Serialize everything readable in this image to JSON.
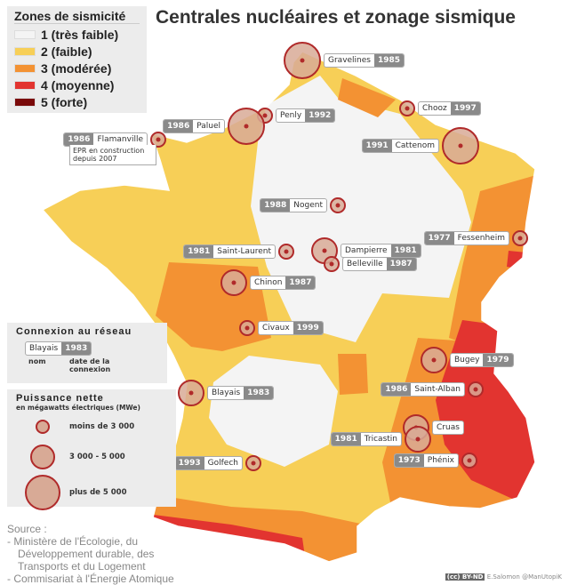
{
  "title": "Centrales nucléaires et zonage sismique",
  "legend": {
    "title": "Zones de sismicité",
    "zones": [
      {
        "label": "1 (très faible)",
        "color": "#f4f4f4"
      },
      {
        "label": "2 (faible)",
        "color": "#f7cf57"
      },
      {
        "label": "3 (modérée)",
        "color": "#f39233"
      },
      {
        "label": "4 (moyenne)",
        "color": "#e23430"
      },
      {
        "label": "5 (forte)",
        "color": "#7a0a0a"
      }
    ]
  },
  "connexion": {
    "title": "Connexion au réseau",
    "example_name": "Blayais",
    "example_year": "1983",
    "name_caption": "nom",
    "date_caption": "date de la connexion"
  },
  "puissance": {
    "title": "Puissance nette",
    "subtitle": "en mégawatts électriques (MWe)",
    "sizes": [
      "moins de 3 000",
      "3 000 - 5 000",
      "plus de 5 000"
    ]
  },
  "plants": [
    {
      "name": "Gravelines",
      "year": "1985",
      "size": "large"
    },
    {
      "name": "Penly",
      "year": "1992",
      "size": "small"
    },
    {
      "name": "Paluel",
      "year": "1986",
      "size": "large"
    },
    {
      "name": "Flamanville",
      "year": "1986",
      "size": "small",
      "note": "EPR en construction depuis 2007"
    },
    {
      "name": "Chooz",
      "year": "1997",
      "size": "small"
    },
    {
      "name": "Cattenom",
      "year": "1991",
      "size": "large"
    },
    {
      "name": "Nogent",
      "year": "1988",
      "size": "small"
    },
    {
      "name": "Saint-Laurent",
      "year": "1981",
      "size": "small"
    },
    {
      "name": "Dampierre",
      "year": "1981",
      "size": "medium"
    },
    {
      "name": "Belleville",
      "year": "1987",
      "size": "small"
    },
    {
      "name": "Fessenheim",
      "year": "1977",
      "size": "small"
    },
    {
      "name": "Chinon",
      "year": "1987",
      "size": "medium"
    },
    {
      "name": "Civaux",
      "year": "1999",
      "size": "small"
    },
    {
      "name": "Bugey",
      "year": "1979",
      "size": "medium"
    },
    {
      "name": "Saint-Alban",
      "year": "1986",
      "size": "small"
    },
    {
      "name": "Blayais",
      "year": "1983",
      "size": "medium"
    },
    {
      "name": "Cruas",
      "year": "",
      "size": "medium"
    },
    {
      "name": "Tricastin",
      "year": "1981",
      "size": "medium"
    },
    {
      "name": "Phénix",
      "year": "1973",
      "size": "small"
    },
    {
      "name": "Golfech",
      "year": "1993",
      "size": "small"
    }
  ],
  "source": {
    "title": "Source :",
    "lines": [
      "- Ministère de l'Écologie, du",
      "Développement durable, des",
      "Transports et du Logement",
      "- Commisariat à l'Énergie Atomique"
    ]
  },
  "credit": {
    "license": "(cc) BY-ND",
    "author": "E.Salomon @ManUtopiK"
  }
}
